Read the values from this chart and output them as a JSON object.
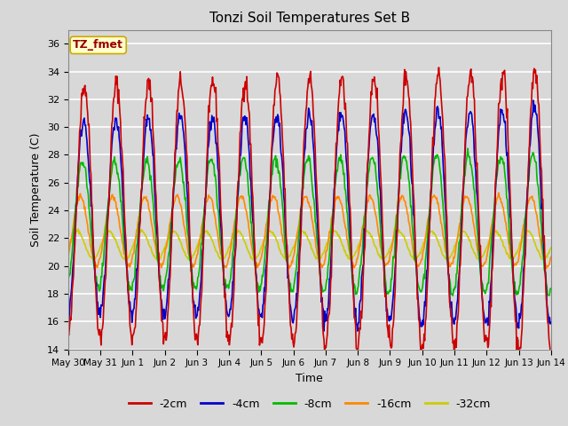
{
  "title": "Tonzi Soil Temperatures Set B",
  "xlabel": "Time",
  "ylabel": "Soil Temperature (C)",
  "ylim": [
    14,
    37
  ],
  "yticks": [
    14,
    16,
    18,
    20,
    22,
    24,
    26,
    28,
    30,
    32,
    34,
    36
  ],
  "series_colors": {
    "-2cm": "#cc0000",
    "-4cm": "#0000cc",
    "-8cm": "#00bb00",
    "-16cm": "#ff8800",
    "-32cm": "#cccc00"
  },
  "series_linewidths": {
    "-2cm": 1.2,
    "-4cm": 1.2,
    "-8cm": 1.2,
    "-16cm": 1.2,
    "-32cm": 1.2
  },
  "background_color": "#d8d8d8",
  "plot_bg_color": "#d8d8d8",
  "annotation_text": "TZ_fmet",
  "annotation_bg": "#ffffcc",
  "annotation_border": "#ccaa00",
  "annotation_text_color": "#990000",
  "grid_color": "#ffffff",
  "xtick_labels": [
    "May 30",
    "May 31",
    "Jun 1",
    "Jun 2",
    "Jun 3",
    "Jun 4",
    "Jun 5",
    "Jun 6",
    "Jun 7",
    "Jun 8",
    "Jun 9",
    "Jun 10",
    "Jun 11",
    "Jun 12",
    "Jun 13",
    "Jun 14"
  ],
  "n_days": 15,
  "points_per_day": 48,
  "figsize": [
    6.4,
    4.8
  ],
  "dpi": 100
}
